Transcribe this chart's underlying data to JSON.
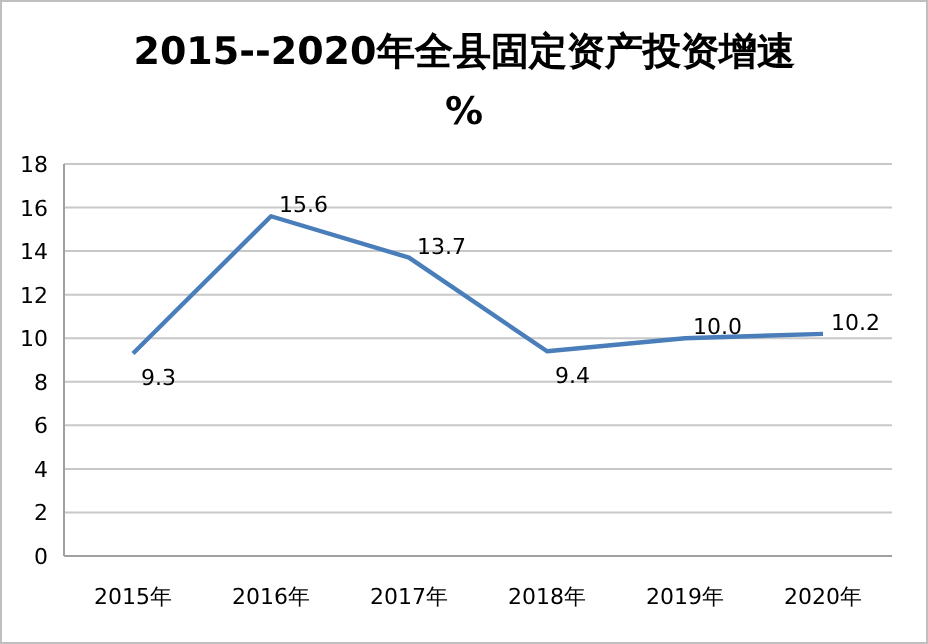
{
  "chart_data": {
    "type": "line",
    "title": "2015--2020年全县固定资产投资增速",
    "subtitle": "%",
    "categories": [
      "2015年",
      "2016年",
      "2017年",
      "2018年",
      "2019年",
      "2020年"
    ],
    "series": [
      {
        "color": "#4a7ebb",
        "values": [
          9.3,
          15.6,
          13.7,
          9.4,
          10.0,
          10.2
        ]
      }
    ],
    "value_labels": [
      "9.3",
      "15.6",
      "13.7",
      "9.4",
      "10.0",
      "10.2"
    ],
    "ylim": [
      0,
      18
    ],
    "yticks": [
      0,
      2,
      4,
      6,
      8,
      10,
      12,
      14,
      16,
      18
    ],
    "grid": "y",
    "marker": "none",
    "line_style": "solid"
  }
}
